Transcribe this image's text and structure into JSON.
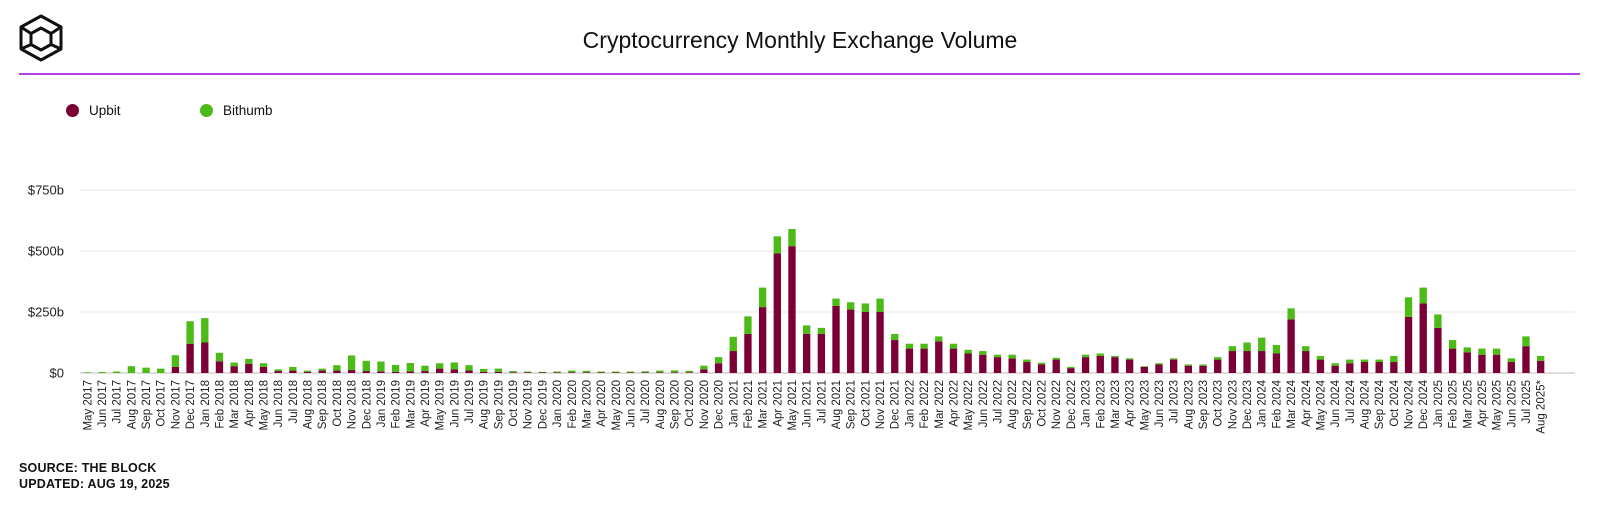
{
  "header": {
    "title": "Cryptocurrency Monthly Exchange Volume"
  },
  "footer": {
    "source": "SOURCE: THE BLOCK",
    "updated": "UPDATED: AUG 19, 2025"
  },
  "colors": {
    "upbit": "#7a0036",
    "bithumb": "#4cbb17",
    "divider": "#b13fe6",
    "grid": "#e6e6e6"
  },
  "chart_data": {
    "type": "bar",
    "stacked": true,
    "title": "Cryptocurrency Monthly Exchange Volume",
    "xlabel": "",
    "ylabel": "",
    "ylim": [
      0,
      750
    ],
    "y_ticks": [
      0,
      250,
      500,
      750
    ],
    "y_tick_labels": [
      "$0",
      "$250b",
      "$500b",
      "$750b"
    ],
    "grid": true,
    "legend_position": "top-left",
    "categories": [
      "May 2017",
      "Jun 2017",
      "Jul 2017",
      "Aug 2017",
      "Sep 2017",
      "Oct 2017",
      "Nov 2017",
      "Dec 2017",
      "Jan 2018",
      "Feb 2018",
      "Mar 2018",
      "Apr 2018",
      "May 2018",
      "Jun 2018",
      "Jul 2018",
      "Aug 2018",
      "Sep 2018",
      "Oct 2018",
      "Nov 2018",
      "Dec 2018",
      "Jan 2019",
      "Feb 2019",
      "Mar 2019",
      "Apr 2019",
      "May 2019",
      "Jun 2019",
      "Jul 2019",
      "Aug 2019",
      "Sep 2019",
      "Oct 2019",
      "Nov 2019",
      "Dec 2019",
      "Jan 2020",
      "Feb 2020",
      "Mar 2020",
      "Apr 2020",
      "May 2020",
      "Jun 2020",
      "Jul 2020",
      "Aug 2020",
      "Sep 2020",
      "Oct 2020",
      "Nov 2020",
      "Dec 2020",
      "Jan 2021",
      "Feb 2021",
      "Mar 2021",
      "Apr 2021",
      "May 2021",
      "Jun 2021",
      "Jul 2021",
      "Aug 2021",
      "Sep 2021",
      "Oct 2021",
      "Nov 2021",
      "Dec 2021",
      "Jan 2022",
      "Feb 2022",
      "Mar 2022",
      "Apr 2022",
      "May 2022",
      "Jun 2022",
      "Jul 2022",
      "Aug 2022",
      "Sep 2022",
      "Oct 2022",
      "Nov 2022",
      "Dec 2022",
      "Jan 2023",
      "Feb 2023",
      "Mar 2023",
      "Apr 2023",
      "May 2023",
      "Jun 2023",
      "Jul 2023",
      "Aug 2023",
      "Sep 2023",
      "Oct 2023",
      "Nov 2023",
      "Dec 2023",
      "Jan 2024",
      "Feb 2024",
      "Mar 2024",
      "Apr 2024",
      "May 2024",
      "Jun 2024",
      "Jul 2024",
      "Aug 2024",
      "Sep 2024",
      "Oct 2024",
      "Nov 2024",
      "Dec 2024",
      "Jan 2025",
      "Feb 2025",
      "Mar 2025",
      "Apr 2025",
      "May 2025",
      "Jun 2025",
      "Jul 2025",
      "Aug 2025*"
    ],
    "series": [
      {
        "name": "Upbit",
        "color": "#7a0036",
        "values": [
          0,
          0,
          0,
          0,
          0,
          0,
          25,
          120,
          125,
          48,
          28,
          38,
          25,
          8,
          10,
          5,
          10,
          10,
          12,
          8,
          7,
          5,
          6,
          8,
          18,
          15,
          10,
          5,
          5,
          3,
          3,
          2,
          2,
          3,
          3,
          2,
          2,
          2,
          2,
          3,
          3,
          3,
          15,
          40,
          90,
          160,
          270,
          490,
          520,
          160,
          160,
          275,
          260,
          250,
          250,
          135,
          100,
          100,
          130,
          100,
          80,
          75,
          65,
          60,
          45,
          35,
          55,
          20,
          65,
          70,
          65,
          55,
          25,
          35,
          55,
          30,
          30,
          55,
          90,
          90,
          90,
          80,
          220,
          90,
          55,
          30,
          40,
          45,
          45,
          45,
          230,
          285,
          185,
          100,
          85,
          75,
          75,
          45,
          110,
          50
        ]
      },
      {
        "name": "Bithumb",
        "color": "#4cbb17",
        "values": [
          3,
          4,
          6,
          28,
          22,
          18,
          48,
          92,
          100,
          35,
          15,
          20,
          15,
          7,
          15,
          5,
          8,
          22,
          60,
          42,
          40,
          28,
          35,
          22,
          22,
          28,
          22,
          12,
          13,
          5,
          3,
          3,
          4,
          7,
          6,
          4,
          4,
          4,
          5,
          7,
          8,
          6,
          15,
          25,
          58,
          72,
          80,
          70,
          70,
          35,
          25,
          30,
          30,
          35,
          55,
          25,
          20,
          20,
          20,
          20,
          15,
          15,
          10,
          15,
          10,
          7,
          7,
          5,
          10,
          10,
          5,
          5,
          3,
          5,
          5,
          5,
          5,
          10,
          20,
          35,
          55,
          35,
          45,
          20,
          15,
          10,
          15,
          10,
          10,
          25,
          80,
          65,
          55,
          35,
          20,
          25,
          25,
          15,
          40,
          20
        ]
      }
    ]
  }
}
